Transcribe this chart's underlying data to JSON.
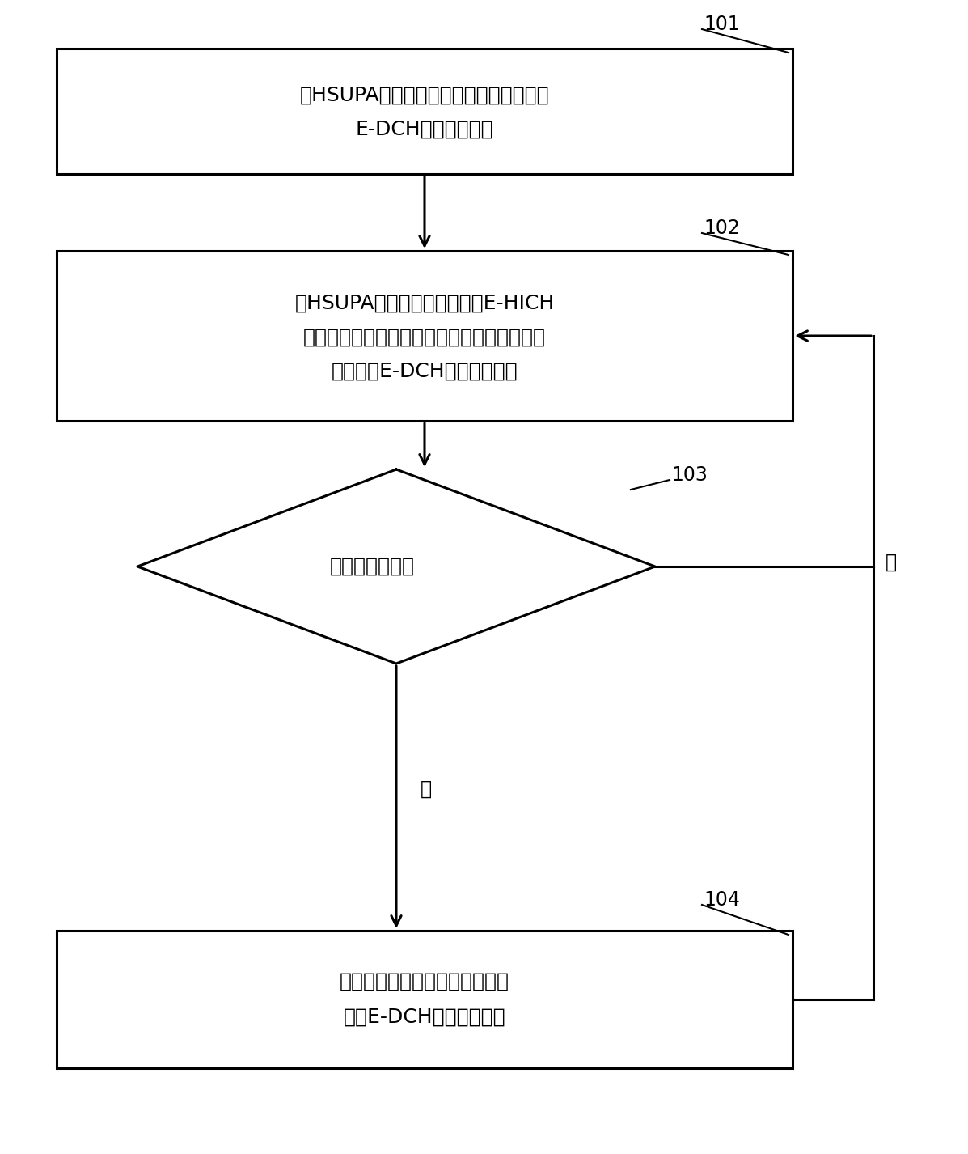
{
  "bg_color": "#ffffff",
  "box1_text_line1": "在HSUPA业务建立时，根据授权资源确定",
  "box1_text_line2": "E-DCH的传输块大小",
  "box1_label": "101",
  "box2_text_line1": "在HSUPA业务进行过程中，对E-HICH",
  "box2_text_line2": "接收到的确认指示进行统计，并根据统计结果",
  "box2_text_line3": "调整所述E-DCH的传输块大小",
  "box2_label": "102",
  "diamond_text": "授权资源改变？",
  "diamond_label": "103",
  "box4_text_line1": "根据改变后的授权资源重新确定",
  "box4_text_line2": "所述E-DCH的传输块大小",
  "box4_label": "104",
  "yes_label": "是",
  "no_label": "否",
  "lw": 2.2,
  "font_size_text": 18,
  "font_size_label": 17,
  "font_size_yn": 17
}
